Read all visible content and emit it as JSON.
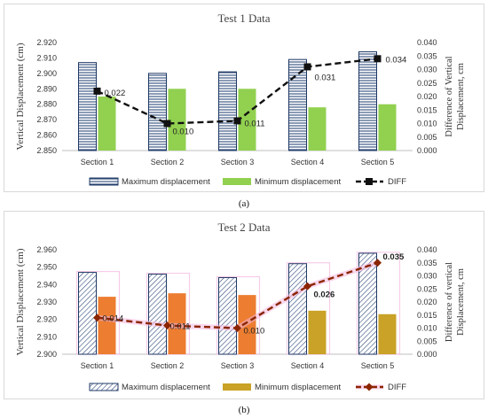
{
  "chart_data": [
    {
      "type": "bar",
      "title": "Test 1 Data",
      "panel_label": "(a)",
      "categories": [
        "Section 1",
        "Section 2",
        "Section 3",
        "Section 4",
        "Section 5"
      ],
      "ylabel": "Vertical Displacement (cm)",
      "y2label_line1": "Difference of Vertical",
      "y2label_line2": "Displacement, cm",
      "ylim": [
        2.85,
        2.92
      ],
      "y_ticks": [
        "2.850",
        "2.860",
        "2.870",
        "2.880",
        "2.890",
        "2.900",
        "2.910",
        "2.920"
      ],
      "y2lim": [
        0,
        0.04
      ],
      "y2_ticks": [
        "0.000",
        "0.005",
        "0.010",
        "0.015",
        "0.020",
        "0.025",
        "0.030",
        "0.035",
        "0.040"
      ],
      "series": [
        {
          "name": "Maximum displacement",
          "axis": "left",
          "kind": "bar",
          "values": [
            2.907,
            2.9,
            2.901,
            2.909,
            2.914
          ]
        },
        {
          "name": "Minimum displacement",
          "axis": "left",
          "kind": "bar",
          "values": [
            2.885,
            2.89,
            2.89,
            2.878,
            2.88
          ]
        },
        {
          "name": "DIFF",
          "axis": "right",
          "kind": "line",
          "values": [
            0.022,
            0.01,
            0.011,
            0.031,
            0.034
          ],
          "labels": [
            "0.022",
            "0.010",
            "0.011",
            "0.031",
            "0.034"
          ]
        }
      ],
      "colors": {
        "max_stroke": "#1f3864",
        "max_hatch": "#2e4a7a",
        "min_fill": "#92d050",
        "line": "#111111"
      },
      "legend": [
        "Maximum displacement",
        "Minimum displacement",
        "DIFF"
      ]
    },
    {
      "type": "bar",
      "title": "Test 2 Data",
      "panel_label": "(b)",
      "categories": [
        "Section 1",
        "Section 2",
        "Section 3",
        "Section 4",
        "Section 5"
      ],
      "ylabel": "Vertical Displacement (cm)",
      "y2label_line1": "Difference of vertical",
      "y2label_line2": "Displacement, cm",
      "ylim": [
        2.9,
        2.96
      ],
      "y_ticks": [
        "2.900",
        "2.910",
        "2.920",
        "2.930",
        "2.940",
        "2.950",
        "2.960"
      ],
      "y2lim": [
        0,
        0.04
      ],
      "y2_ticks": [
        "0.000",
        "0.005",
        "0.010",
        "0.015",
        "0.020",
        "0.025",
        "0.030",
        "0.035",
        "0.040"
      ],
      "series": [
        {
          "name": "Maximum displacement",
          "axis": "left",
          "kind": "bar",
          "values": [
            2.947,
            2.946,
            2.944,
            2.952,
            2.958
          ]
        },
        {
          "name": "Minimum displacement",
          "axis": "left",
          "kind": "bar",
          "values": [
            2.933,
            2.935,
            2.934,
            2.925,
            2.923
          ]
        },
        {
          "name": "DIFF",
          "axis": "right",
          "kind": "line",
          "values": [
            0.014,
            0.011,
            0.01,
            0.026,
            0.035
          ],
          "labels": [
            "0.014",
            "0.011",
            "0.010",
            "0.026",
            "0.035"
          ]
        }
      ],
      "colors": {
        "max_stroke": "#1f3864",
        "max_hatch": "#2e4a7a",
        "min_fill": "#ed7d31",
        "min_fill_alt": "#c9a227",
        "line": "#8b2500",
        "shadow": "#f4b8e0"
      },
      "legend": [
        "Maximum displacement",
        "Minimum displacement",
        "DIFF"
      ]
    }
  ]
}
